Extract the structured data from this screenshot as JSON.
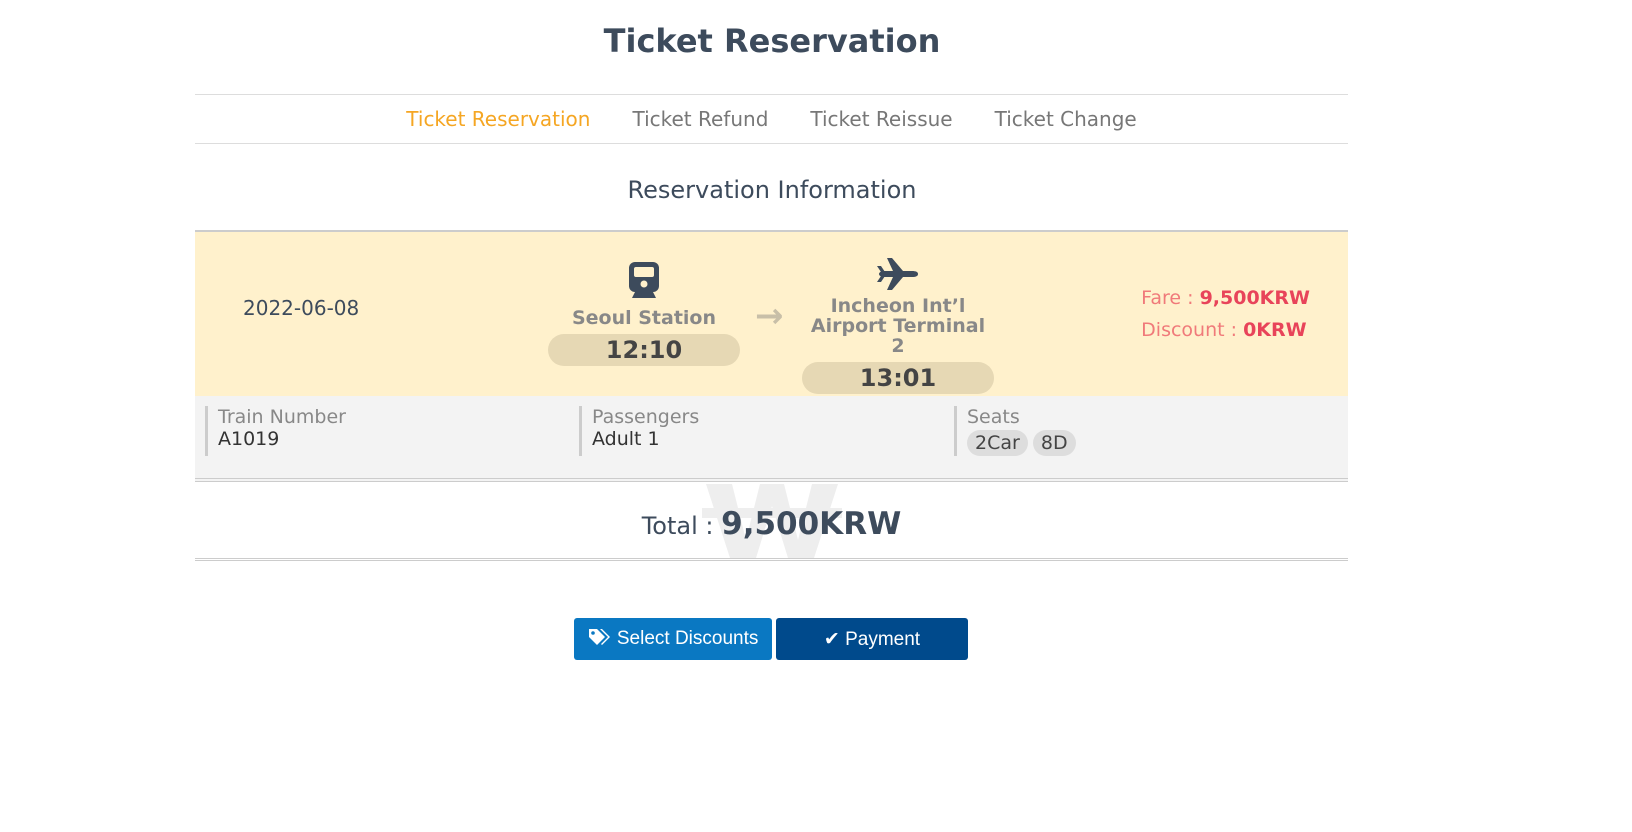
{
  "title": "Ticket Reservation",
  "tabs": [
    {
      "label": "Ticket Reservation",
      "active": true
    },
    {
      "label": "Ticket Refund"
    },
    {
      "label": "Ticket Reissue"
    },
    {
      "label": "Ticket Change"
    }
  ],
  "section_title": "Reservation Information",
  "trip": {
    "date": "2022-06-08",
    "departure": {
      "station": "Seoul Station",
      "time": "12:10",
      "icon": "train-icon"
    },
    "arrival": {
      "station_line1": "Incheon Int’l",
      "station_line2": "Airport Terminal 2",
      "time": "13:01",
      "icon": "airplane-icon"
    },
    "fare_label": "Fare :",
    "fare": "9,500KRW",
    "discount_label": "Discount :",
    "discount": "0KRW"
  },
  "details": {
    "train_label": "Train Number",
    "train": "A1019",
    "passengers_label": "Passengers",
    "passengers": "Adult 1",
    "seats_label": "Seats",
    "seats": [
      "2Car",
      "8D"
    ]
  },
  "total": {
    "label": "Total :",
    "value": "9,500KRW",
    "watermark": "₩"
  },
  "buttons": {
    "discounts": "Select Discounts",
    "payment": "Payment"
  },
  "colors": {
    "accent": "#f5a623",
    "discount_btn": "#0a78c2",
    "payment_btn": "#004a8c",
    "fare": "#e8445a"
  }
}
